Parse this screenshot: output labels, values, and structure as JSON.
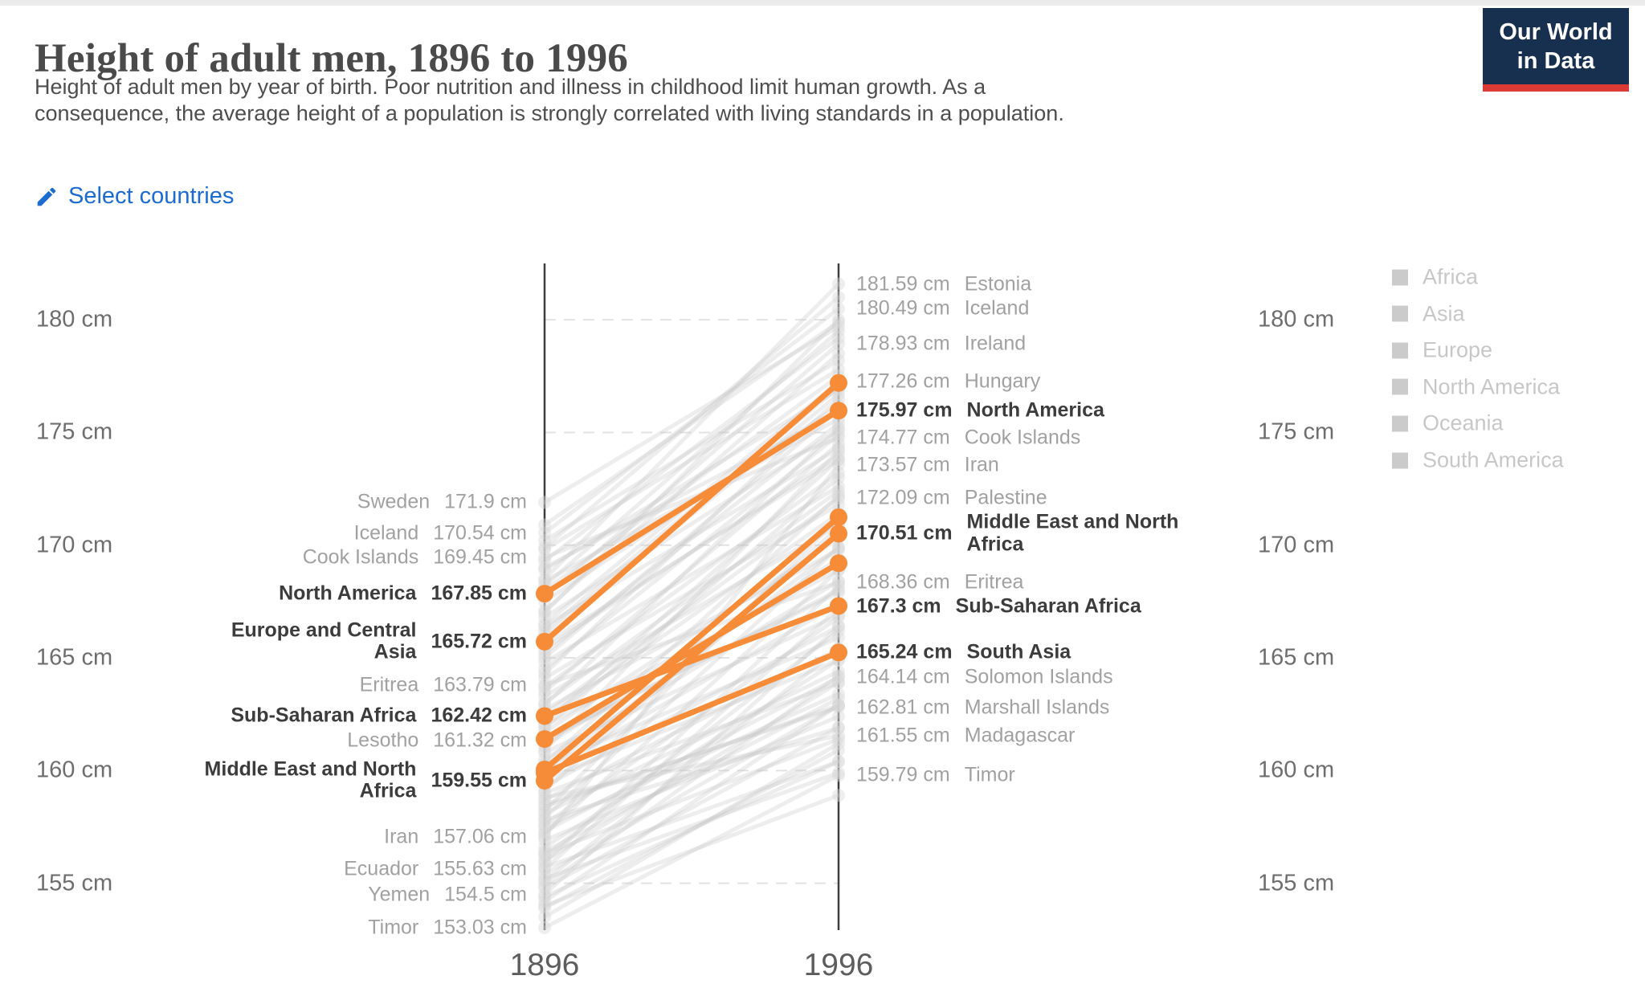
{
  "page": {
    "top_strip_color": "#ebebeb",
    "background": "#ffffff"
  },
  "header": {
    "title": "Height of adult men, 1896 to 1996",
    "subtitle_lines": [
      "Height of adult men by year of birth. Poor nutrition and illness in childhood limit human growth. As a",
      "consequence, the average height of a population is strongly correlated with living standards in a population."
    ],
    "logo": {
      "line1": "Our World",
      "line2": "in Data",
      "bg_color": "#18304f",
      "bar_color": "#dc3a34",
      "text_color": "#ffffff"
    }
  },
  "controls": {
    "select_countries_label": "Select countries",
    "link_color": "#1c6bd0",
    "icon": "pencil-icon"
  },
  "chart_data": {
    "type": "line",
    "subtype": "slope",
    "title": "Height of adult men, 1896 to 1996",
    "x_years": [
      "1896",
      "1996"
    ],
    "unit": "cm",
    "y_ticks": [
      155,
      160,
      165,
      170,
      175,
      180
    ],
    "y_tick_suffix": " cm",
    "y_axis_range": [
      152.5,
      182.5
    ],
    "grid": "dashed-horizontal",
    "legend_position": "right",
    "highlight_color": "#f78c38",
    "muted_line_color": "#c9c9c9",
    "axis_color": "#3d3d3d",
    "gridline_color": "#e2e2e2",
    "highlighted_series": [
      {
        "name": "North America",
        "start": 167.85,
        "end": 175.97
      },
      {
        "name": "Europe and Central Asia",
        "start": 165.72,
        "end": 177.2,
        "end_approx": true
      },
      {
        "name": "Sub-Saharan Africa",
        "start": 162.42,
        "end": 167.3
      },
      {
        "name": "Middle East and North Africa",
        "start": 159.55,
        "end": 170.51
      },
      {
        "name": "South Asia",
        "start": 159.9,
        "end": 165.24,
        "start_approx": true
      },
      {
        "name": "",
        "start": 161.4,
        "end": 169.2,
        "approx": true
      },
      {
        "name": "",
        "start": 160.05,
        "end": 171.24,
        "approx": true
      }
    ],
    "left_labels": [
      {
        "name_lines": [
          "Sweden"
        ],
        "value": 171.9,
        "display": "171.9 cm",
        "bold": false
      },
      {
        "name_lines": [
          "Iceland"
        ],
        "value": 170.54,
        "display": "170.54 cm",
        "bold": false
      },
      {
        "name_lines": [
          "Cook Islands"
        ],
        "value": 169.45,
        "display": "169.45 cm",
        "bold": false
      },
      {
        "name_lines": [
          "North America"
        ],
        "value": 167.85,
        "display": "167.85 cm",
        "bold": true
      },
      {
        "name_lines": [
          "Europe and Central",
          "Asia"
        ],
        "value": 165.72,
        "display": "165.72 cm",
        "bold": true
      },
      {
        "name_lines": [
          "Eritrea"
        ],
        "value": 163.79,
        "display": "163.79 cm",
        "bold": false
      },
      {
        "name_lines": [
          "Sub-Saharan Africa"
        ],
        "value": 162.42,
        "display": "162.42 cm",
        "bold": true
      },
      {
        "name_lines": [
          "Lesotho"
        ],
        "value": 161.32,
        "display": "161.32 cm",
        "bold": false
      },
      {
        "name_lines": [
          "Middle East and North",
          "Africa"
        ],
        "value": 159.55,
        "display": "159.55 cm",
        "bold": true
      },
      {
        "name_lines": [
          "Iran"
        ],
        "value": 157.06,
        "display": "157.06 cm",
        "bold": false
      },
      {
        "name_lines": [
          "Ecuador"
        ],
        "value": 155.63,
        "display": "155.63 cm",
        "bold": false
      },
      {
        "name_lines": [
          "Yemen"
        ],
        "value": 154.5,
        "display": "154.5 cm",
        "bold": false
      },
      {
        "name_lines": [
          "Timor"
        ],
        "value": 153.03,
        "display": "153.03 cm",
        "bold": false
      }
    ],
    "right_labels": [
      {
        "name_lines": [
          "Estonia"
        ],
        "value": 181.59,
        "display": "181.59 cm",
        "bold": false
      },
      {
        "name_lines": [
          "Iceland"
        ],
        "value": 180.49,
        "display": "180.49 cm",
        "bold": false
      },
      {
        "name_lines": [
          "Ireland"
        ],
        "value": 178.93,
        "display": "178.93 cm",
        "bold": false
      },
      {
        "name_lines": [
          "Hungary"
        ],
        "value": 177.26,
        "display": "177.26 cm",
        "bold": false
      },
      {
        "name_lines": [
          "North America"
        ],
        "value": 175.97,
        "display": "175.97 cm",
        "bold": true
      },
      {
        "name_lines": [
          "Cook Islands"
        ],
        "value": 174.77,
        "display": "174.77 cm",
        "bold": false
      },
      {
        "name_lines": [
          "Iran"
        ],
        "value": 173.57,
        "display": "173.57 cm",
        "bold": false
      },
      {
        "name_lines": [
          "Palestine"
        ],
        "value": 172.09,
        "display": "172.09 cm",
        "bold": false
      },
      {
        "name_lines": [
          "Middle East and North",
          "Africa"
        ],
        "value": 170.51,
        "display": "170.51 cm",
        "bold": true
      },
      {
        "name_lines": [
          "Eritrea"
        ],
        "value": 168.36,
        "display": "168.36 cm",
        "bold": false
      },
      {
        "name_lines": [
          "Sub-Saharan Africa"
        ],
        "value": 167.3,
        "display": "167.3 cm",
        "bold": true
      },
      {
        "name_lines": [
          "South Asia"
        ],
        "value": 165.24,
        "display": "165.24 cm",
        "bold": true
      },
      {
        "name_lines": [
          "Solomon Islands"
        ],
        "value": 164.14,
        "display": "164.14 cm",
        "bold": false
      },
      {
        "name_lines": [
          "Marshall Islands"
        ],
        "value": 162.81,
        "display": "162.81 cm",
        "bold": false
      },
      {
        "name_lines": [
          "Madagascar"
        ],
        "value": 161.55,
        "display": "161.55 cm",
        "bold": false
      },
      {
        "name_lines": [
          "Timor"
        ],
        "value": 159.79,
        "display": "159.79 cm",
        "bold": false
      }
    ],
    "background_lines": [
      [
        171.9,
        179.7
      ],
      [
        170.54,
        180.49
      ],
      [
        169.45,
        174.77
      ],
      [
        168.5,
        181.59
      ],
      [
        167.7,
        178.93
      ],
      [
        166.5,
        177.26
      ],
      [
        163.79,
        168.36
      ],
      [
        162.5,
        172.09
      ],
      [
        161.32,
        168.0
      ],
      [
        157.06,
        173.57
      ],
      [
        155.63,
        167.2
      ],
      [
        154.5,
        166.4
      ],
      [
        153.03,
        159.79
      ],
      [
        157.3,
        164.14
      ],
      [
        158.5,
        162.81
      ],
      [
        158.8,
        161.55
      ],
      [
        170.9,
        179.9
      ],
      [
        170.2,
        178.2
      ],
      [
        169.8,
        177.8
      ],
      [
        169.3,
        179.2
      ],
      [
        168.9,
        176.9
      ],
      [
        168.4,
        175.6
      ],
      [
        168.0,
        177.5
      ],
      [
        167.5,
        176.2
      ],
      [
        167.1,
        178.5
      ],
      [
        166.8,
        175.1
      ],
      [
        166.4,
        174.3
      ],
      [
        166.0,
        176.7
      ],
      [
        165.6,
        173.8
      ],
      [
        165.2,
        175.4
      ],
      [
        164.8,
        172.6
      ],
      [
        164.5,
        174.9
      ],
      [
        164.1,
        171.8
      ],
      [
        163.7,
        173.2
      ],
      [
        163.3,
        170.9
      ],
      [
        163.0,
        172.4
      ],
      [
        162.7,
        169.8
      ],
      [
        162.3,
        171.4
      ],
      [
        162.0,
        168.9
      ],
      [
        161.7,
        170.3
      ],
      [
        161.4,
        167.9
      ],
      [
        161.1,
        169.4
      ],
      [
        160.8,
        166.9
      ],
      [
        160.5,
        168.4
      ],
      [
        160.2,
        165.9
      ],
      [
        159.9,
        167.4
      ],
      [
        159.6,
        164.9
      ],
      [
        159.3,
        166.4
      ],
      [
        159.0,
        163.9
      ],
      [
        158.7,
        165.4
      ],
      [
        158.4,
        162.9
      ],
      [
        158.1,
        164.4
      ],
      [
        157.8,
        161.9
      ],
      [
        157.5,
        163.4
      ],
      [
        157.2,
        168.9
      ],
      [
        156.9,
        162.4
      ],
      [
        156.6,
        164.9
      ],
      [
        156.3,
        161.4
      ],
      [
        156.0,
        163.9
      ],
      [
        155.7,
        160.4
      ],
      [
        155.4,
        162.9
      ],
      [
        155.1,
        165.4
      ],
      [
        154.8,
        161.9
      ],
      [
        154.4,
        160.4
      ],
      [
        154.2,
        162.9
      ],
      [
        153.9,
        160.9
      ],
      [
        156.2,
        166.2
      ],
      [
        157.9,
        169.9
      ],
      [
        159.1,
        170.8
      ],
      [
        160.3,
        172.2
      ],
      [
        161.9,
        173.0
      ],
      [
        163.5,
        174.5
      ],
      [
        165.0,
        176.0
      ],
      [
        166.2,
        177.0
      ],
      [
        168.2,
        179.5
      ],
      [
        169.9,
        181.0
      ],
      [
        155.9,
        168.2
      ],
      [
        154.9,
        164.2
      ],
      [
        158.2,
        171.2
      ],
      [
        160.9,
        174.2
      ],
      [
        162.9,
        175.2
      ],
      [
        164.3,
        176.5
      ],
      [
        167.0,
        180.0
      ],
      [
        153.5,
        161.2
      ],
      [
        154.0,
        158.9
      ],
      [
        155.2,
        159.9
      ],
      [
        169.0,
        175.9
      ],
      [
        165.4,
        174.0
      ],
      [
        162.1,
        173.8
      ],
      [
        160.0,
        169.9
      ],
      [
        157.6,
        166.8
      ],
      [
        156.4,
        163.2
      ]
    ]
  },
  "legend": {
    "items": [
      "Africa",
      "Asia",
      "Europe",
      "North America",
      "Oceania",
      "South America"
    ],
    "swatch_color": "#cbcbcb",
    "text_color": "#c7c7c7"
  }
}
